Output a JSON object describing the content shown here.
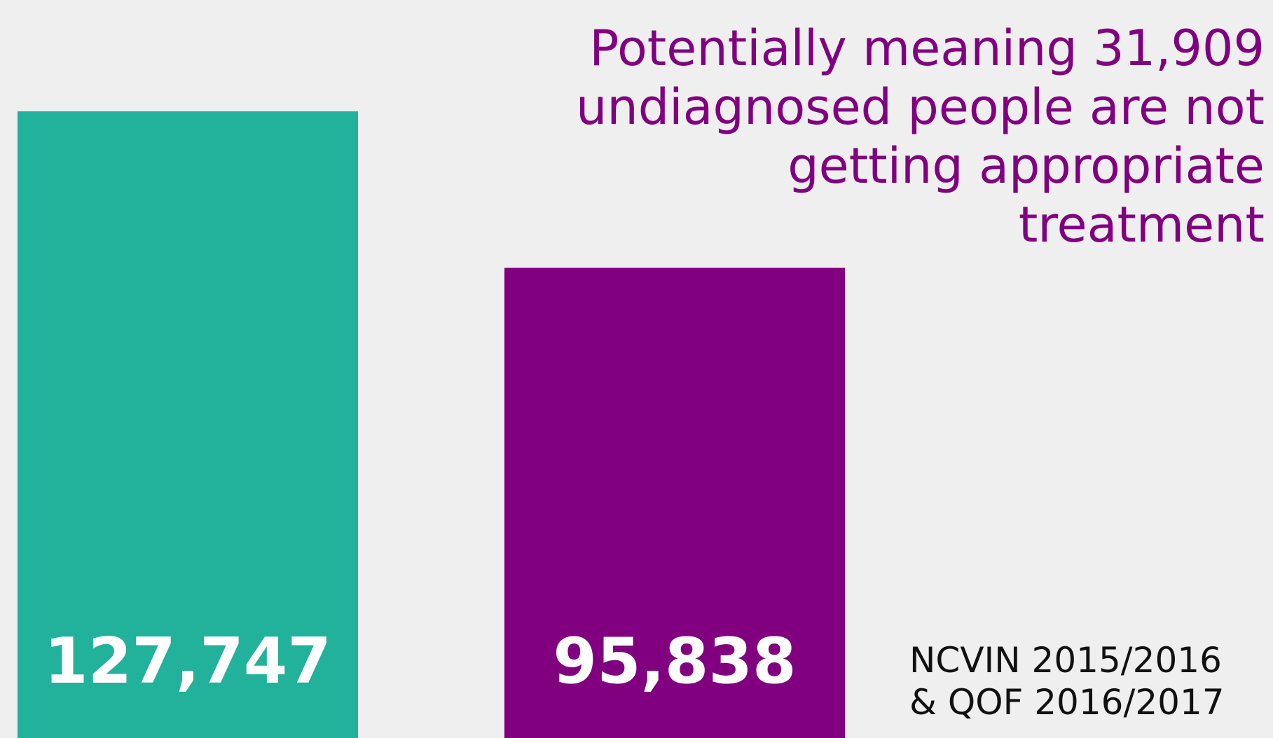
{
  "chart_data": {
    "type": "bar",
    "values": [
      127747,
      95838
    ],
    "value_labels": [
      "127,747",
      "95,838"
    ],
    "colors": [
      "#22b19a",
      "#800080"
    ],
    "annotation": [
      "Potentially meaning 31,909",
      "undiagnosed people are not",
      "getting appropriate",
      "treatment"
    ],
    "annotation_color": "#800080",
    "source": [
      "NCVIN 2015/2016",
      "& QOF 2016/2017"
    ]
  }
}
